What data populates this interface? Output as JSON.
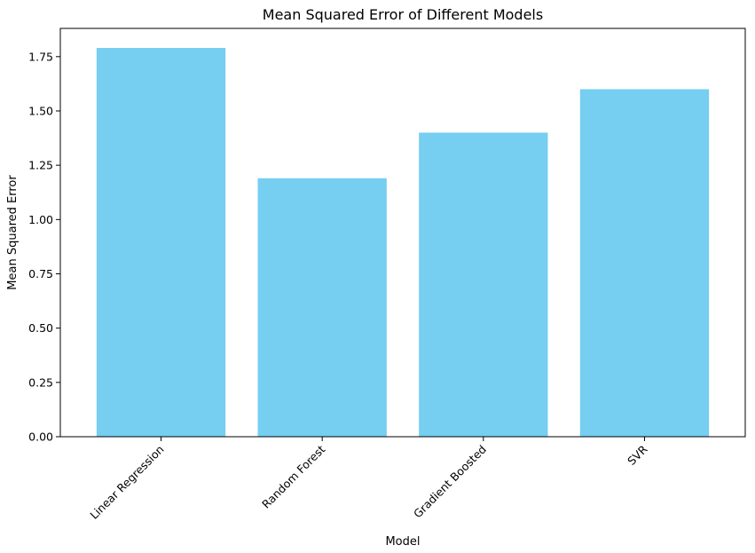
{
  "chart_data": {
    "type": "bar",
    "title": "Mean Squared Error of Different Models",
    "xlabel": "Model",
    "ylabel": "Mean Squared Error",
    "categories": [
      "Linear Regression",
      "Random Forest",
      "Gradient Boosted",
      "SVR"
    ],
    "values": [
      1.79,
      1.19,
      1.4,
      1.6
    ],
    "ylim": [
      0,
      1.88
    ],
    "yticks": [
      "0.00",
      "0.25",
      "0.50",
      "0.75",
      "1.00",
      "1.25",
      "1.50",
      "1.75"
    ],
    "bar_color": "#76CEF1",
    "xtick_rotation": 45,
    "grid": false
  }
}
